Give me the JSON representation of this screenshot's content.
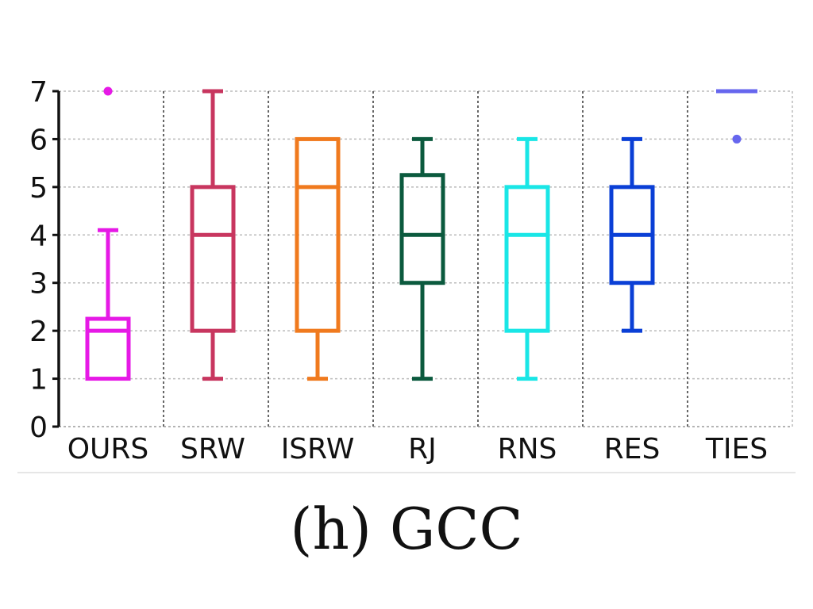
{
  "caption": "(h) GCC",
  "chart_data": {
    "type": "box",
    "categories": [
      "OURS",
      "SRW",
      "ISRW",
      "RJ",
      "RNS",
      "RES",
      "TIES"
    ],
    "ylim": [
      0,
      7
    ],
    "yticks": [
      0,
      1,
      2,
      3,
      4,
      5,
      6,
      7
    ],
    "grid": true,
    "series": [
      {
        "category": "OURS",
        "color": "#e619e6",
        "whisker_low": 1,
        "q1": 1,
        "median": 2,
        "q3": 2.25,
        "whisker_high": 4.1,
        "outliers": [
          7
        ]
      },
      {
        "category": "SRW",
        "color": "#c8365f",
        "whisker_low": 1,
        "q1": 2,
        "median": 4,
        "q3": 5,
        "whisker_high": 7,
        "outliers": []
      },
      {
        "category": "ISRW",
        "color": "#f07a1e",
        "whisker_low": 1,
        "q1": 2,
        "median": 5,
        "q3": 6,
        "whisker_high": 6,
        "outliers": []
      },
      {
        "category": "RJ",
        "color": "#0b5a3e",
        "whisker_low": 1,
        "q1": 3,
        "median": 4,
        "q3": 5.25,
        "whisker_high": 6,
        "outliers": []
      },
      {
        "category": "RNS",
        "color": "#19e6e6",
        "whisker_low": 1,
        "q1": 2,
        "median": 4,
        "q3": 5,
        "whisker_high": 6,
        "outliers": []
      },
      {
        "category": "RES",
        "color": "#0a3fd6",
        "whisker_low": 2,
        "q1": 3,
        "median": 4,
        "q3": 5,
        "whisker_high": 6,
        "outliers": []
      },
      {
        "category": "TIES",
        "color": "#6666ee",
        "whisker_low": 7,
        "q1": 7,
        "median": 7,
        "q3": 7,
        "whisker_high": 7,
        "outliers": [
          6
        ]
      }
    ]
  }
}
